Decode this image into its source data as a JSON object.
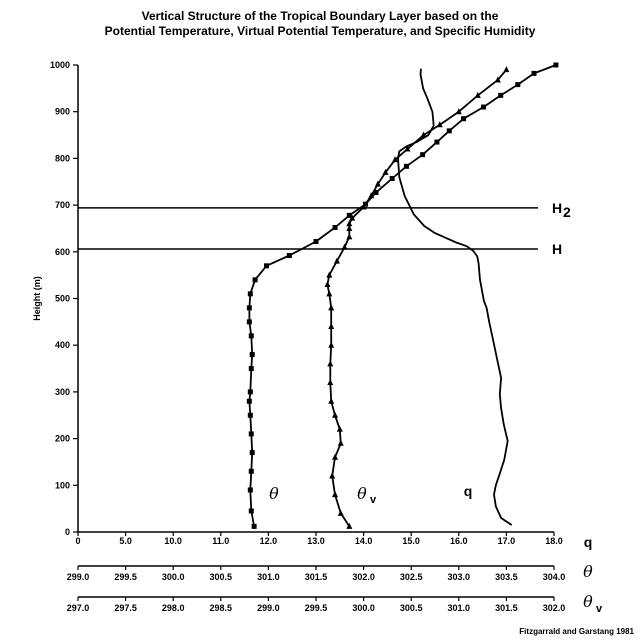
{
  "chart_data": {
    "type": "line",
    "title_line1": "Vertical Structure of the Tropical Boundary Layer based on the",
    "title_line2": "Potential Temperature, Virtual Potential Temperature, and Specific Humidity",
    "ylabel": "Height (m)",
    "y_ticks": [
      0,
      100,
      200,
      300,
      400,
      500,
      600,
      700,
      800,
      900,
      1000
    ],
    "ylim": [
      0,
      1000
    ],
    "axes": [
      {
        "name": "q",
        "label": "q",
        "range": [
          0,
          18.0
        ],
        "ticks": [
          "0",
          "5.0",
          "10.0",
          "11.0",
          "12.0",
          "13.0",
          "14.0",
          "15.0",
          "16.0",
          "17.0",
          "18.0"
        ]
      },
      {
        "name": "theta",
        "label": "θ",
        "range": [
          299.0,
          304.0
        ],
        "ticks": [
          "299.0",
          "299.5",
          "300.0",
          "300.5",
          "301.0",
          "301.5",
          "302.0",
          "302.5",
          "303.0",
          "303.5",
          "304.0"
        ]
      },
      {
        "name": "theta_v",
        "label": "θ",
        "label_sub": "v",
        "range": [
          297.0,
          302.0
        ],
        "ticks": [
          "297.0",
          "297.5",
          "298.0",
          "298.5",
          "299.0",
          "299.5",
          "300.0",
          "300.5",
          "301.0",
          "301.5",
          "302.0"
        ]
      }
    ],
    "reference_lines": [
      {
        "label": "H",
        "label_sub": "2",
        "y": 694
      },
      {
        "label": "H",
        "label_sub": "",
        "y": 606
      }
    ],
    "series": [
      {
        "name": "θ",
        "name_sub": "",
        "marker": "square",
        "axis": "theta",
        "x": [
          300.85,
          300.82,
          300.81,
          300.82,
          300.83,
          300.82,
          300.81,
          300.8,
          300.81,
          300.82,
          300.83,
          300.82,
          300.8,
          300.8,
          300.81,
          300.86,
          300.98,
          301.22,
          301.5,
          301.7,
          301.85,
          302.02,
          302.13,
          302.3,
          302.45,
          302.62,
          302.77,
          302.9,
          303.05,
          303.26,
          303.44,
          303.62,
          303.79,
          304.02
        ],
        "y": [
          12,
          45,
          90,
          130,
          170,
          210,
          250,
          280,
          300,
          350,
          380,
          420,
          450,
          480,
          510,
          540,
          570,
          592,
          622,
          652,
          678,
          702,
          727,
          757,
          783,
          808,
          835,
          859,
          885,
          910,
          935,
          958,
          982,
          1000
        ]
      },
      {
        "name": "θ",
        "name_sub": "v",
        "marker": "triangle",
        "axis": "theta_v",
        "x": [
          299.85,
          299.76,
          299.7,
          299.67,
          299.7,
          299.76,
          299.75,
          299.7,
          299.66,
          299.65,
          299.65,
          299.66,
          299.66,
          299.66,
          299.64,
          299.62,
          299.64,
          299.72,
          299.8,
          299.85,
          299.85,
          299.85,
          299.88,
          300.0,
          300.08,
          300.15,
          300.23,
          300.33,
          300.46,
          300.63,
          300.8,
          301.0,
          301.2,
          301.41,
          301.5
        ],
        "y": [
          12,
          40,
          80,
          120,
          160,
          190,
          220,
          250,
          280,
          320,
          360,
          400,
          440,
          480,
          510,
          530,
          550,
          580,
          610,
          632,
          650,
          660,
          672,
          696,
          720,
          745,
          770,
          797,
          820,
          850,
          872,
          900,
          935,
          968,
          990
        ]
      },
      {
        "name": "q",
        "name_sub": "",
        "marker": "none",
        "axis": "q",
        "x": [
          16.4,
          16.0,
          15.8,
          15.73,
          15.8,
          15.95,
          16.12,
          16.25,
          16.1,
          16.0,
          15.95,
          16.0,
          15.85,
          15.7,
          15.55,
          15.45,
          15.35,
          15.3,
          15.2,
          15.15,
          15.1,
          14.95,
          14.7,
          14.3,
          13.9,
          13.5,
          13.1,
          12.7,
          12.35,
          12.15,
          12.1,
          12.15,
          12.4,
          12.8,
          13.25,
          13.45,
          13.4,
          13.2,
          13.05,
          13.0,
          12.95,
          12.97
        ],
        "y": [
          15,
          30,
          55,
          80,
          100,
          125,
          155,
          195,
          230,
          265,
          295,
          330,
          370,
          410,
          450,
          480,
          495,
          510,
          540,
          575,
          590,
          602,
          612,
          620,
          630,
          640,
          655,
          680,
          720,
          760,
          800,
          815,
          825,
          835,
          850,
          870,
          900,
          930,
          950,
          965,
          980,
          992
        ]
      }
    ],
    "annotations": {
      "credit": "Fitzgarrald and Garstang 1981"
    },
    "grid": false
  }
}
